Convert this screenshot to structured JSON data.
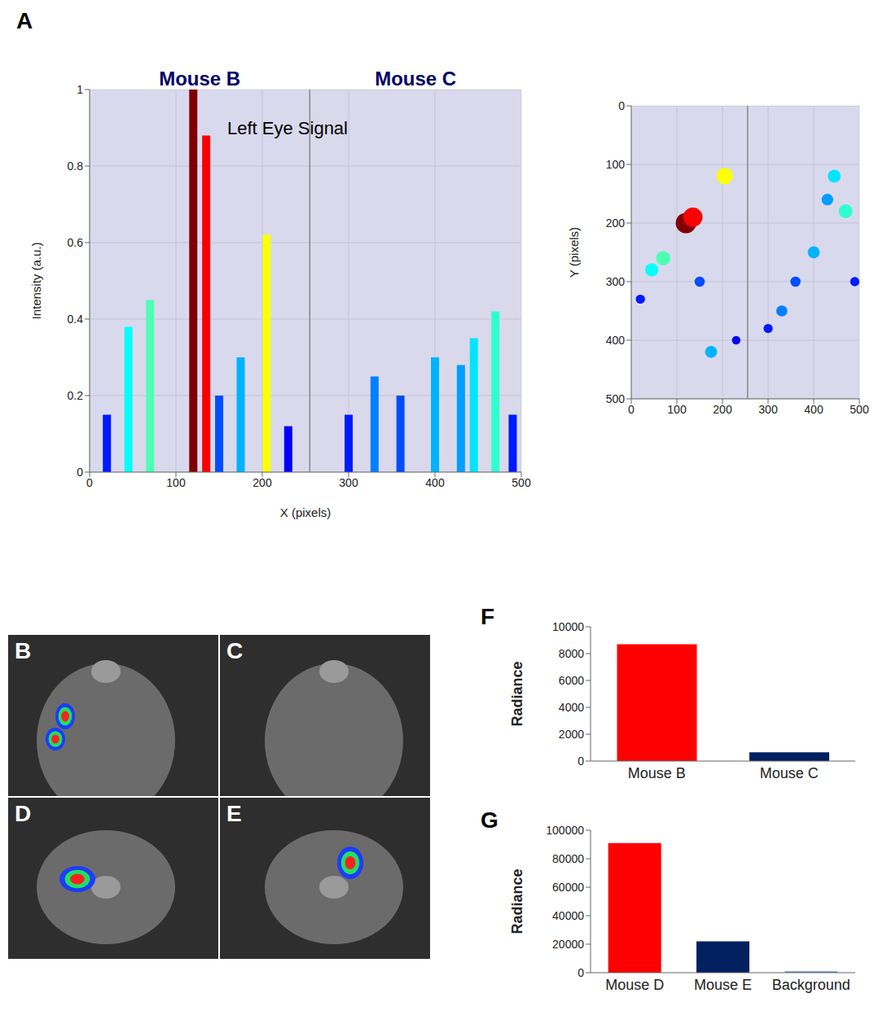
{
  "chart_data": [
    {
      "panel": "A",
      "type": "surface",
      "x_label": "X (pixels)",
      "y_label": "Y (pixels)",
      "z_label": "Intensity (a.u.)",
      "xlim": [
        0,
        500
      ],
      "xticks": [
        0,
        100,
        200,
        300,
        400,
        500
      ],
      "ylim": [
        0,
        500
      ],
      "yticks": [
        0,
        100,
        200,
        300,
        400,
        500
      ],
      "zlim": [
        0,
        1
      ],
      "zticks": [
        0,
        0.2,
        0.4,
        0.6,
        0.8,
        1
      ],
      "grid": true,
      "regions": [
        {
          "label": "Mouse B",
          "x": [
            0,
            255
          ]
        },
        {
          "label": "Mouse C",
          "x": [
            255,
            500
          ]
        }
      ],
      "annotation": {
        "text": "Left Eye Signal",
        "x": 150,
        "z": 0.9
      },
      "peaks": {
        "x": [
          20,
          45,
          70,
          120,
          135,
          150,
          175,
          205,
          230,
          300,
          330,
          360,
          400,
          430,
          445,
          470,
          490
        ],
        "y": [
          330,
          280,
          260,
          200,
          190,
          300,
          420,
          120,
          400,
          380,
          350,
          300,
          250,
          160,
          120,
          180,
          300
        ],
        "intensity": [
          0.15,
          0.38,
          0.45,
          1.0,
          0.88,
          0.2,
          0.3,
          0.62,
          0.12,
          0.15,
          0.25,
          0.2,
          0.3,
          0.28,
          0.35,
          0.42,
          0.15
        ]
      }
    },
    {
      "panel": "F",
      "type": "bar",
      "categories": [
        "Mouse B",
        "Mouse C"
      ],
      "values": [
        8700,
        650
      ],
      "colors": [
        "#ff0000",
        "#002060"
      ],
      "y_label": "Radiance",
      "ylim": [
        0,
        10000
      ],
      "yticks": [
        0,
        2000,
        4000,
        6000,
        8000,
        10000
      ]
    },
    {
      "panel": "G",
      "type": "bar",
      "categories": [
        "Mouse D",
        "Mouse E",
        "Background"
      ],
      "values": [
        91000,
        22000,
        1000
      ],
      "colors": [
        "#ff0000",
        "#002060",
        "#5b9bd5"
      ],
      "y_label": "Radiance",
      "ylim": [
        0,
        100000
      ],
      "yticks": [
        0,
        20000,
        40000,
        60000,
        80000,
        100000
      ]
    }
  ],
  "images": [
    {
      "panel": "B"
    },
    {
      "panel": "C"
    },
    {
      "panel": "D"
    },
    {
      "panel": "E"
    }
  ]
}
